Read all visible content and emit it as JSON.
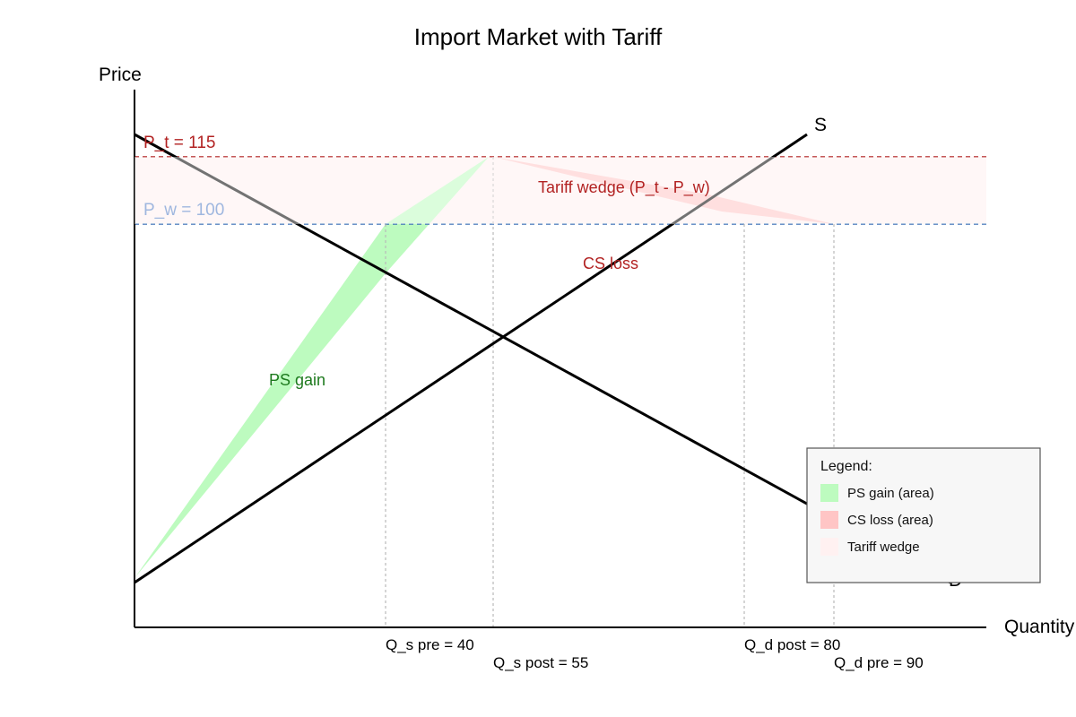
{
  "title": "Import Market with Tariff",
  "axes": {
    "x_label": "Quantity",
    "y_label": "Price"
  },
  "curves": {
    "supply_label": "S",
    "demand_label": "D"
  },
  "prices": {
    "p_t_label": "P_t = 115",
    "p_w_label": "P_w = 100"
  },
  "quantities": {
    "q_s_pre": "Q_s pre = 40",
    "q_s_post": "Q_s post = 55",
    "q_d_post": "Q_d post = 80",
    "q_d_pre": "Q_d pre = 90"
  },
  "regions": {
    "tariff_wedge": "Tariff wedge (P_t - P_w)",
    "cs_loss": "CS loss",
    "ps_gain": "PS gain"
  },
  "legend": {
    "title": "Legend:",
    "items": [
      {
        "label": "PS gain (area)",
        "color": "#bdfbbf"
      },
      {
        "label": "CS loss (area)",
        "color": "#ffc5c5"
      },
      {
        "label": "Tariff wedge",
        "color": "#fff1f1"
      }
    ]
  },
  "colors": {
    "ps_gain": "#bdfbbf",
    "cs_loss": "#ffc5c5",
    "tariff_wedge": "#fff1f1",
    "p_t_line": "#b22222",
    "p_w_line": "#3a6fb5",
    "p_t_text": "#b22222",
    "p_w_text": "#9fb7df",
    "region_text": "#b22222",
    "ps_text": "#1e7a1e"
  }
}
